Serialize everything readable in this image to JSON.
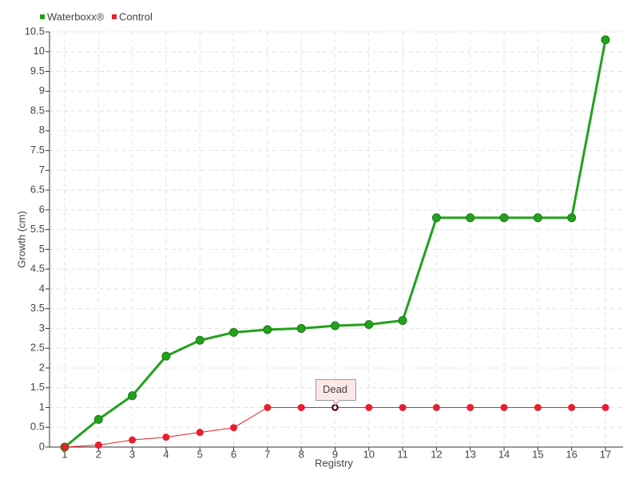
{
  "chart_data": {
    "type": "line",
    "x_label": "Registry",
    "y_label": "Growth (cm)",
    "categories": [
      "1",
      "2",
      "3",
      "4",
      "5",
      "6",
      "7",
      "8",
      "9",
      "10",
      "11",
      "12",
      "13",
      "14",
      "15",
      "16",
      "17"
    ],
    "series": [
      {
        "name": "Waterboxx®",
        "color": "#23a11d",
        "values": [
          0,
          0.7,
          1.3,
          2.3,
          2.7,
          2.9,
          2.97,
          3.0,
          3.07,
          3.1,
          3.2,
          5.8,
          5.8,
          5.8,
          5.8,
          5.8,
          10.3
        ]
      },
      {
        "name": "Control",
        "color": "#e8202c",
        "values": [
          0,
          0.05,
          0.18,
          0.25,
          0.37,
          0.49,
          1,
          1,
          1,
          1,
          1,
          1,
          1,
          1,
          1,
          1,
          1
        ]
      }
    ],
    "annotations": [
      {
        "text": "Dead",
        "x": "9",
        "y": 1
      }
    ],
    "ylim": [
      0,
      10.5
    ],
    "yticks": [
      0,
      0.5,
      1,
      1.5,
      2,
      2.5,
      3,
      3.5,
      4,
      4.5,
      5,
      5.5,
      6,
      6.5,
      7,
      7.5,
      8,
      8.5,
      9,
      9.5,
      10,
      10.5
    ],
    "grid": true,
    "legend": "top-left"
  }
}
